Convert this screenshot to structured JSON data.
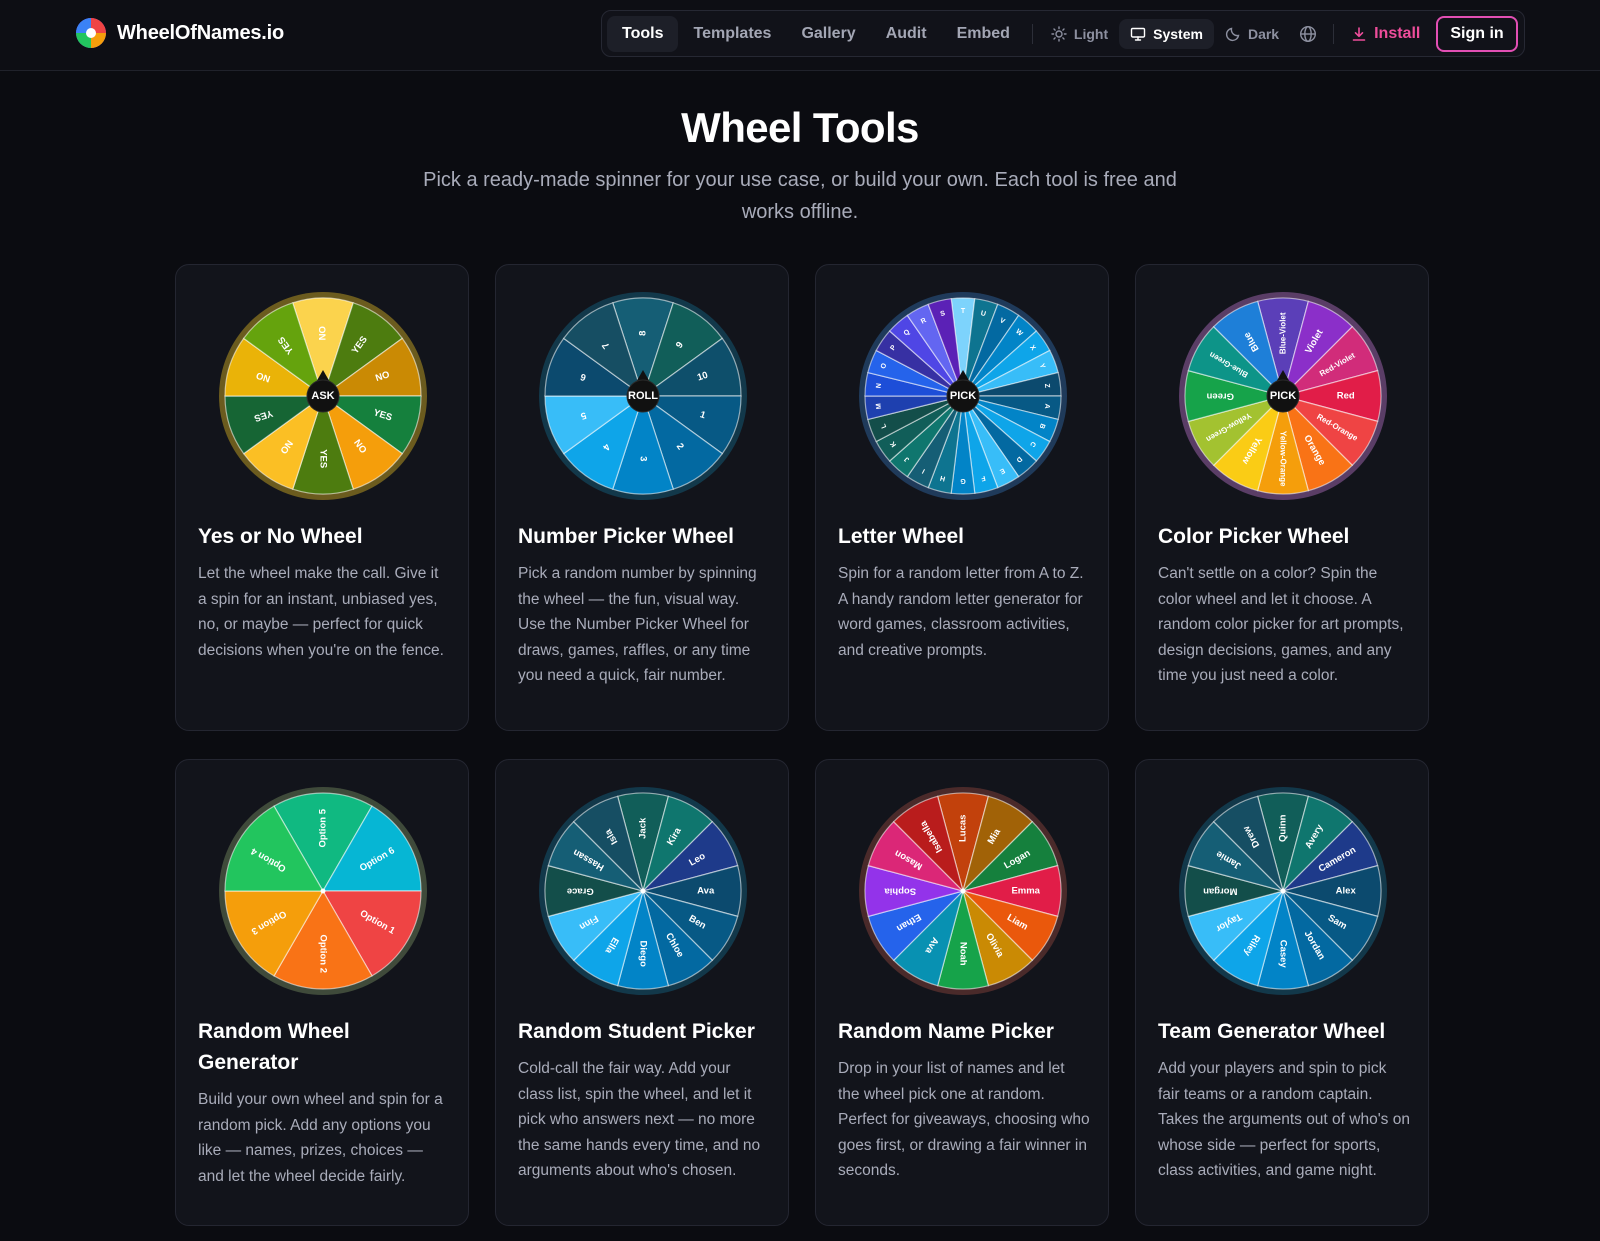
{
  "app": {
    "name": "WheelOfNames.io"
  },
  "nav": {
    "items": [
      "Tools",
      "Templates",
      "Gallery",
      "Audit",
      "Embed"
    ],
    "active": "Tools",
    "theme_light": "Light",
    "theme_system": "System",
    "theme_dark": "Dark",
    "theme_active": "System",
    "install": "Install",
    "signin": "Sign in"
  },
  "hero": {
    "title": "Wheel Tools",
    "subtitle": "Pick a ready-made spinner for your use case, or build your own. Each tool is free and works offline."
  },
  "cards": [
    {
      "title": "Yes or No Wheel",
      "description": "Let the wheel make the call. Give it a spin for an instant, unbiased yes, no, or maybe — perfect for quick decisions when you're on the fence.",
      "hub": "ASK",
      "labels": [
        "NO",
        "YES",
        "NO",
        "YES",
        "NO",
        "YES",
        "NO",
        "YES",
        "NO",
        "YES"
      ],
      "colors": [
        "#fbd34d",
        "#4d7c0f",
        "#ca8a04",
        "#15803d",
        "#f59e0b",
        "#4d7c0f",
        "#fbbf24",
        "#166534",
        "#eab308",
        "#65a30d"
      ],
      "ring": "#6b5b1e"
    },
    {
      "title": "Number Picker Wheel",
      "description": "Pick a random number by spinning the wheel — the fun, visual way. Use the Number Picker Wheel for draws, games, raffles, or any time you need a quick, fair number.",
      "hub": "ROLL",
      "labels": [
        "8",
        "9",
        "10",
        "1",
        "2",
        "3",
        "4",
        "5",
        "6",
        "7"
      ],
      "colors": [
        "#155e75",
        "#115e59",
        "#0e4f6b",
        "#075985",
        "#0369a1",
        "#0284c7",
        "#0ea5e9",
        "#38bdf8",
        "#0c4a6e",
        "#164e63"
      ],
      "ring": "#12384a"
    },
    {
      "title": "Letter Wheel",
      "description": "Spin for a random letter from A to Z. A handy random letter generator for word games, classroom activities, and creative prompts.",
      "hub": "PICK",
      "labels": [
        "T",
        "U",
        "V",
        "W",
        "X",
        "Y",
        "Z",
        "A",
        "B",
        "C",
        "D",
        "E",
        "F",
        "G",
        "H",
        "I",
        "J",
        "K",
        "L",
        "M",
        "N",
        "O",
        "P",
        "Q",
        "R",
        "S"
      ],
      "colors": [
        "#7dd3fc",
        "#0e7490",
        "#0369a1",
        "#0284c7",
        "#0ea5e9",
        "#38bdf8",
        "#0c4a6e",
        "#075985",
        "#0284c7",
        "#0ea5e9",
        "#0369a1",
        "#38bdf8",
        "#0ea5e9",
        "#0284c7",
        "#0e7490",
        "#155e75",
        "#0f766e",
        "#115e59",
        "#134e4a",
        "#1e40af",
        "#1d4ed8",
        "#2563eb",
        "#3730a3",
        "#4f46e5",
        "#6366f1",
        "#5b21b6"
      ],
      "ring": "#1f3a5a"
    },
    {
      "title": "Color Picker Wheel",
      "description": "Can't settle on a color? Spin the color wheel and let it choose. A random color picker for art prompts, design decisions, games, and any time you just need a color.",
      "hub": "PICK",
      "labels": [
        "Blue-Violet",
        "Violet",
        "Red-Violet",
        "Red",
        "Red-Orange",
        "Orange",
        "Yellow-Orange",
        "Yellow",
        "Yellow-Green",
        "Green",
        "Blue-Green",
        "Blue"
      ],
      "colors": [
        "#5b3fb8",
        "#8b2fc9",
        "#d12c7a",
        "#e11d48",
        "#ef4444",
        "#f97316",
        "#f59e0b",
        "#facc15",
        "#a3c230",
        "#16a34a",
        "#0d9488",
        "#1e7fd8"
      ],
      "ring": "#5a3d66"
    },
    {
      "title": "Random Wheel Generator",
      "description": "Build your own wheel and spin for a random pick. Add any options you like — names, prizes, choices — and let the wheel decide fairly.",
      "hub": "",
      "labels": [
        "Option 5",
        "Option 6",
        "Option 1",
        "Option 2",
        "Option 3",
        "Option 4"
      ],
      "colors": [
        "#10b981",
        "#06b6d4",
        "#ef4444",
        "#f97316",
        "#f59e0b",
        "#22c55e"
      ],
      "ring": "#3f4a3a"
    },
    {
      "title": "Random Student Picker",
      "description": "Cold-call the fair way. Add your class list, spin the wheel, and let it pick who answers next — no more the same hands every time, and no arguments about who's chosen.",
      "hub": "",
      "labels": [
        "Jack",
        "Kira",
        "Leo",
        "Ava",
        "Ben",
        "Chloe",
        "Diego",
        "Ella",
        "Finn",
        "Grace",
        "Hassan",
        "Isla"
      ],
      "colors": [
        "#115e59",
        "#0f766e",
        "#1e3a8a",
        "#0c4a6e",
        "#075985",
        "#0369a1",
        "#0284c7",
        "#0ea5e9",
        "#38bdf8",
        "#134e4a",
        "#155e75",
        "#164e63"
      ],
      "ring": "#12384a"
    },
    {
      "title": "Random Name Picker",
      "description": "Drop in your list of names and let the wheel pick one at random. Perfect for giveaways, choosing who goes first, or drawing a fair winner in seconds.",
      "hub": "",
      "labels": [
        "Lucas",
        "Mia",
        "Logan",
        "Emma",
        "Liam",
        "Olivia",
        "Noah",
        "Ava",
        "Ethan",
        "Sophia",
        "Mason",
        "Isabella"
      ],
      "colors": [
        "#c2410c",
        "#a16207",
        "#15803d",
        "#e11d48",
        "#ea580c",
        "#ca8a04",
        "#16a34a",
        "#0891b2",
        "#2563eb",
        "#9333ea",
        "#db2777",
        "#b91c1c"
      ],
      "ring": "#4a2a2a"
    },
    {
      "title": "Team Generator Wheel",
      "description": "Add your players and spin to pick fair teams or a random captain. Takes the arguments out of who's on whose side — perfect for sports, class activities, and game night.",
      "hub": "",
      "labels": [
        "Quinn",
        "Avery",
        "Cameron",
        "Alex",
        "Sam",
        "Jordan",
        "Casey",
        "Riley",
        "Taylor",
        "Morgan",
        "Jamie",
        "Drew"
      ],
      "colors": [
        "#115e59",
        "#0f766e",
        "#1e3a8a",
        "#0c4a6e",
        "#075985",
        "#0369a1",
        "#0284c7",
        "#0ea5e9",
        "#38bdf8",
        "#134e4a",
        "#155e75",
        "#164e63"
      ],
      "ring": "#12384a"
    }
  ]
}
